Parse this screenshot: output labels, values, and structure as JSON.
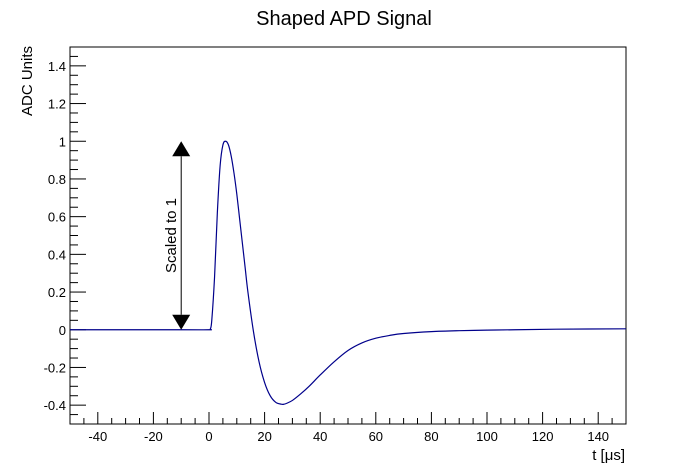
{
  "chart_data": {
    "type": "line",
    "title": "Shaped APD Signal",
    "xlabel": "t [μs]",
    "ylabel": "ADC Units",
    "xlim": [
      -50,
      150
    ],
    "ylim": [
      -0.5,
      1.5
    ],
    "grid": false,
    "legend": "none",
    "x_ticks": [
      -40,
      -20,
      0,
      20,
      40,
      60,
      80,
      100,
      120,
      140
    ],
    "x_tick_labels": [
      "-40",
      "-20",
      "0",
      "20",
      "40",
      "60",
      "80",
      "100",
      "120",
      "140"
    ],
    "y_ticks": [
      -0.4,
      -0.2,
      0,
      0.2,
      0.4,
      0.6,
      0.8,
      1,
      1.2,
      1.4
    ],
    "y_tick_labels": [
      "-0.4",
      "-0.2",
      "0",
      "0.2",
      "0.4",
      "0.6",
      "0.8",
      "1",
      "1.2",
      "1.4"
    ],
    "line_color": "#00008b",
    "series": [
      {
        "x": [
          -50,
          -10,
          0,
          0.5,
          1,
          2,
          3,
          4,
          5,
          6,
          7,
          8,
          9,
          10,
          11,
          12,
          13,
          14,
          16,
          18,
          20,
          22,
          24,
          26,
          27,
          28,
          30,
          33,
          36,
          40,
          45,
          50,
          55,
          60,
          65,
          70,
          80,
          90,
          100,
          110,
          125,
          150
        ],
        "y": [
          0,
          0,
          0,
          0.005,
          0.05,
          0.28,
          0.62,
          0.87,
          0.98,
          1.0,
          0.98,
          0.92,
          0.83,
          0.72,
          0.59,
          0.46,
          0.33,
          0.2,
          -0.01,
          -0.17,
          -0.28,
          -0.35,
          -0.385,
          -0.395,
          -0.395,
          -0.39,
          -0.375,
          -0.34,
          -0.3,
          -0.24,
          -0.17,
          -0.11,
          -0.07,
          -0.045,
          -0.03,
          -0.02,
          -0.01,
          -0.005,
          -0.002,
          0,
          0.003,
          0.005
        ]
      }
    ],
    "annotation": {
      "text": "Scaled to 1",
      "x": -10,
      "y_from": 0,
      "y_to": 1,
      "arrow_color": "#000000"
    }
  }
}
